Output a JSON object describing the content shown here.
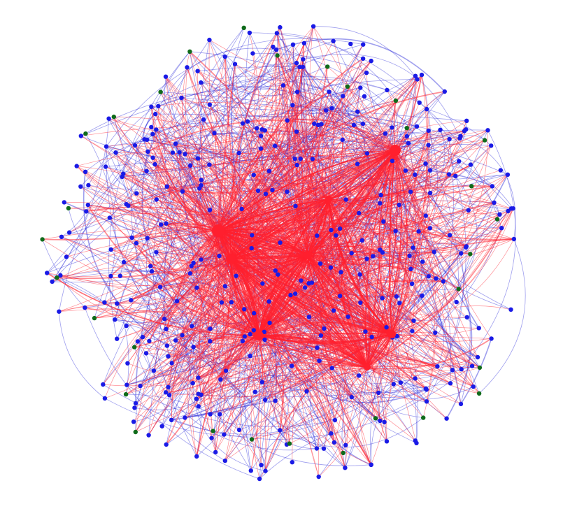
{
  "colors": {
    "background": "#ffffff",
    "hub_node": "#ff1f2e",
    "regular_node": "#1a1ae6",
    "peripheral_node": "#0f6b1a",
    "hub_edge": "#ff1f2e",
    "regular_edge": "#2b2bd9"
  },
  "graph": {
    "node_classes": [
      "hub",
      "regular",
      "peripheral"
    ],
    "hub_count": 8,
    "regular_count": 380,
    "peripheral_count": 30
  }
}
